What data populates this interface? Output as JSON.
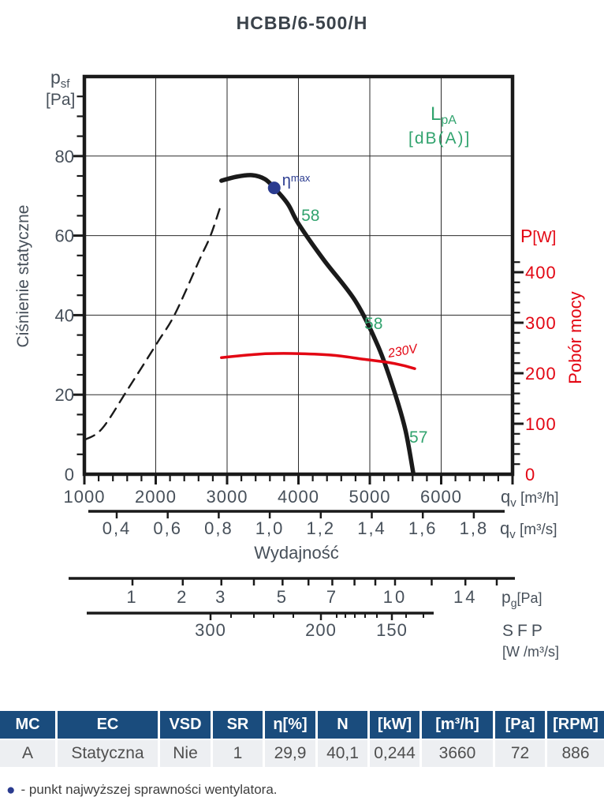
{
  "title": "HCBB/6-500/H",
  "colors": {
    "black": "#1a1a1a",
    "red": "#e30613",
    "green": "#31a36e",
    "blue": "#2a3b8f",
    "axis_gray": "#47505a",
    "table_header_bg": "#1a4c7d",
    "table_row_bg": "#edeff2"
  },
  "chart_data": {
    "type": "line",
    "title": "",
    "x_axis": {
      "label_parts": {
        "sym": "q",
        "sub": "v",
        "unit": " [m³/h]"
      },
      "min": 1000,
      "max": 7000,
      "major_ticks": [
        1000,
        2000,
        3000,
        4000,
        5000,
        6000
      ],
      "minor_step": 200,
      "grid": true
    },
    "y_left": {
      "name": "Ciśnienie statyczne",
      "label_parts": {
        "sym": "p",
        "sub": "sf",
        "unit": "[Pa]"
      },
      "min": 0,
      "max": 100,
      "major_ticks": [
        0,
        20,
        40,
        60,
        80
      ],
      "minor_step": 5,
      "grid": true
    },
    "y_right": {
      "name": "Pobór mocy",
      "label_parts": {
        "sym": "P",
        "unit": "[W]"
      },
      "min": 0,
      "major_ticks": [
        0,
        100,
        200,
        300,
        400
      ],
      "minor_step": 20,
      "minor_max": 420,
      "color": "#e30613"
    },
    "series": [
      {
        "name": "static-pressure-curve",
        "axis": "left",
        "style": "solid",
        "color": "#1a1a1a",
        "width": 5.5,
        "points": [
          [
            2920,
            73.8
          ],
          [
            3130,
            74.8
          ],
          [
            3350,
            75.2
          ],
          [
            3530,
            74.2
          ],
          [
            3660,
            72
          ],
          [
            3850,
            68
          ],
          [
            4000,
            63
          ],
          [
            4350,
            54
          ],
          [
            4800,
            43.5
          ],
          [
            5120,
            32
          ],
          [
            5340,
            21
          ],
          [
            5500,
            11
          ],
          [
            5610,
            0.2
          ]
        ]
      },
      {
        "name": "static-pressure-extrapolation",
        "axis": "left",
        "style": "dashed",
        "color": "#1a1a1a",
        "width": 2.4,
        "points": [
          [
            1010,
            8.7
          ],
          [
            1250,
            11.5
          ],
          [
            1610,
            21.4
          ],
          [
            2030,
            33.3
          ],
          [
            2270,
            40.3
          ],
          [
            2610,
            53.8
          ],
          [
            2770,
            60.1
          ],
          [
            2920,
            68.1
          ]
        ]
      },
      {
        "name": "power-curve-230V",
        "axis": "right",
        "style": "solid",
        "color": "#e30613",
        "width": 3.5,
        "label": "230V",
        "label_at": [
          5265,
          231
        ],
        "points": [
          [
            2920,
            231
          ],
          [
            3460,
            238
          ],
          [
            3910,
            239
          ],
          [
            4460,
            236
          ],
          [
            4900,
            228
          ],
          [
            5230,
            222
          ],
          [
            5450,
            216
          ],
          [
            5630,
            209
          ]
        ]
      }
    ],
    "noise_labels": {
      "legend_parts": {
        "sym": "L",
        "sub": "pA",
        "unit": "[dB(A)]"
      },
      "color": "#31a36e",
      "items": [
        {
          "text": "58",
          "q": 4040,
          "p": 63.7
        },
        {
          "text": "58",
          "q": 4923,
          "p": 36.5
        },
        {
          "text": "57",
          "q": 5553,
          "p": 7.9
        }
      ]
    },
    "eta_max": {
      "q": 3660,
      "p": 72,
      "sym": "η",
      "sup": "max",
      "color": "#2a3b8f"
    },
    "bottom_scales": {
      "m3s": {
        "label_parts": {
          "sym": "q",
          "sub": "v",
          "unit": " [m³/s]"
        },
        "ticks": [
          0.4,
          0.6,
          0.8,
          1.0,
          1.2,
          1.4,
          1.6,
          1.8
        ]
      },
      "flow_title": "Wydajność",
      "pg": {
        "label_parts": {
          "sym": "p",
          "sub": "g",
          "unit": "[Pa]"
        },
        "tick_values": [
          1,
          2,
          3,
          4,
          5,
          6,
          7,
          8,
          9,
          10,
          12,
          14,
          16
        ],
        "labeled": [
          1,
          2,
          3,
          5,
          7,
          10,
          14
        ]
      },
      "sfp": {
        "label": "SFP",
        "unit": "[W /m³/s]",
        "labeled": [
          300,
          200,
          150
        ]
      }
    }
  },
  "table": {
    "headers": [
      "MC",
      "EC",
      "VSD",
      "SR",
      "η[%]",
      "N",
      "[kW]",
      "[m³/h]",
      "[Pa]",
      "[RPM]"
    ],
    "rows": [
      [
        "A",
        "Statyczna",
        "Nie",
        "1",
        "29,9",
        "40,1",
        "0,244",
        "3660",
        "72",
        "886"
      ]
    ]
  },
  "footnote": {
    "bullet": "●",
    "text": "- punkt najwyższej sprawności wentylatora."
  }
}
